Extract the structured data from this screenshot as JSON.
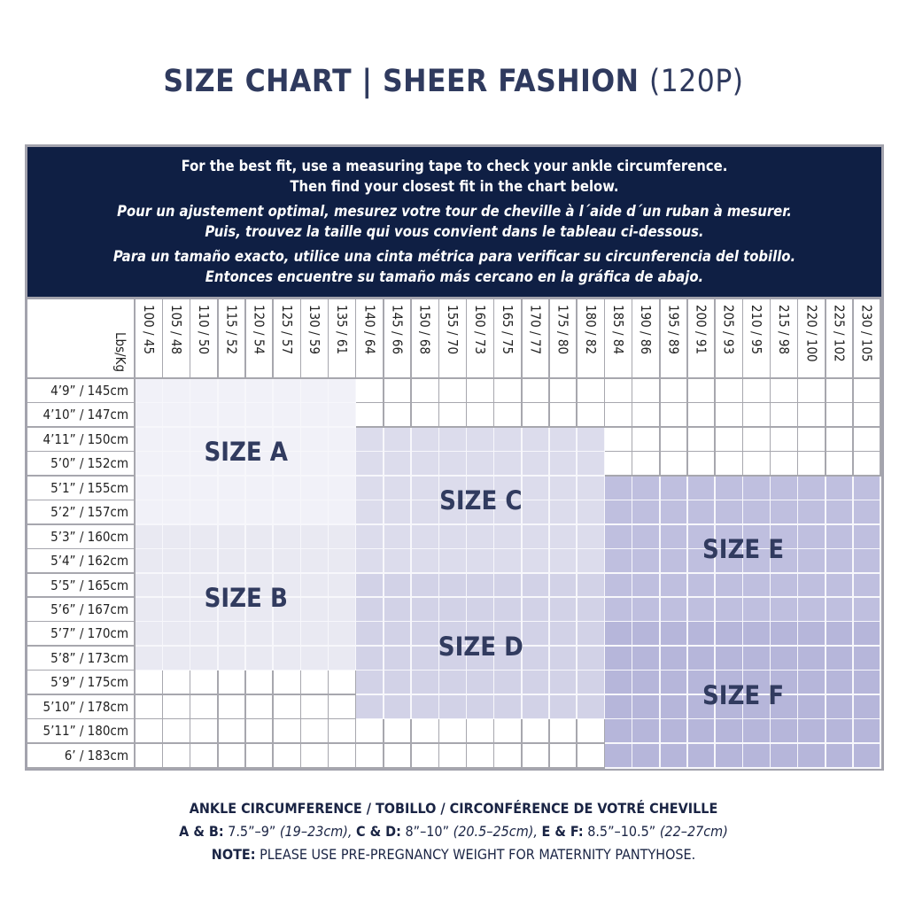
{
  "title": {
    "main": "SIZE CHART | SHEER FASHION",
    "code": "(120P)"
  },
  "banner": {
    "en": [
      "For the best fit, use a measuring tape to check your ankle circumference.",
      "Then find your closest fit in the chart below."
    ],
    "fr": [
      "Pour un ajustement optimal, mesurez votre tour de cheville à l´aide d´un ruban à mesurer.",
      "Puis, trouvez la taille qui vous convient dans le tableau ci-dessous."
    ],
    "es": [
      "Para un tamaño exacto, utilice una cinta métrica para verificar su circunferencia del tobillo.",
      "Entonces encuentre su tamaño más cercano en la gráfica de abajo."
    ]
  },
  "table": {
    "unit_label": "Lbs/Kg",
    "weights": [
      "100 / 45",
      "105 / 48",
      "110 / 50",
      "115 / 52",
      "120 / 54",
      "125 / 57",
      "130 / 59",
      "135 / 61",
      "140 / 64",
      "145 / 66",
      "150 / 68",
      "155 / 70",
      "160 / 73",
      "165 / 75",
      "170 / 77",
      "175 / 80",
      "180 / 82",
      "185 / 84",
      "190 / 86",
      "195 / 89",
      "200 / 91",
      "205 / 93",
      "210 / 95",
      "215 / 98",
      "220 / 100",
      "225 / 102",
      "230 / 105"
    ],
    "heights": [
      "4’9” / 145cm",
      "4’10” / 147cm",
      "4’11” / 150cm",
      "5’0” / 152cm",
      "5’1” / 155cm",
      "5’2” / 157cm",
      "5’3” / 160cm",
      "5’4” / 162cm",
      "5’5” / 165cm",
      "5’6” / 167cm",
      "5’7” / 170cm",
      "5’8” / 173cm",
      "5’9” / 175cm",
      "5’10” / 178cm",
      "5’11” / 180cm",
      "6’ / 183cm"
    ],
    "sizes": [
      {
        "label": "SIZE A",
        "weight_from": "100 / 45",
        "weight_to": "135 / 61",
        "height_from": "4’9” / 145cm",
        "height_to": "5’2” / 157cm",
        "color": "#f1f1f8"
      },
      {
        "label": "SIZE B",
        "weight_from": "100 / 45",
        "weight_to": "135 / 61",
        "height_from": "5’3” / 160cm",
        "height_to": "5’8” / 173cm",
        "color": "#e9e9f2"
      },
      {
        "label": "SIZE C",
        "weight_from": "140 / 64",
        "weight_to": "180 / 82",
        "height_from": "4’11” / 150cm",
        "height_to": "5’4” / 162cm",
        "color": "#dcdcec"
      },
      {
        "label": "SIZE D",
        "weight_from": "140 / 64",
        "weight_to": "180 / 82",
        "height_from": "5’5” / 165cm",
        "height_to": "5’10” / 178cm",
        "color": "#d2d2e7"
      },
      {
        "label": "SIZE E",
        "weight_from": "185 / 84",
        "weight_to": "230 / 105",
        "height_from": "5’1” / 155cm",
        "height_to": "5’6” / 167cm",
        "color": "#bfbfdf"
      },
      {
        "label": "SIZE F",
        "weight_from": "185 / 84",
        "weight_to": "230 / 105",
        "height_from": "5’7” / 170cm",
        "height_to": "6’ / 183cm",
        "color": "#b6b6da"
      }
    ]
  },
  "footer": {
    "heading": "ANKLE CIRCUMFERENCE / TOBILLO / CIRCONFÉRENCE DE VOTRÉ CHEVILLE",
    "ab_label": "A & B:",
    "ab_in": "7.5”–9”",
    "ab_cm": "(19–23cm),",
    "cd_label": "C & D:",
    "cd_in": "8”–10”",
    "cd_cm": "(20.5–25cm),",
    "ef_label": "E & F:",
    "ef_in": "8.5”–10.5”",
    "ef_cm": "(22–27cm)",
    "note_label": "NOTE:",
    "note_text": "PLEASE USE PRE-PREGNANCY WEIGHT FOR MATERNITY PANTYHOSE."
  }
}
